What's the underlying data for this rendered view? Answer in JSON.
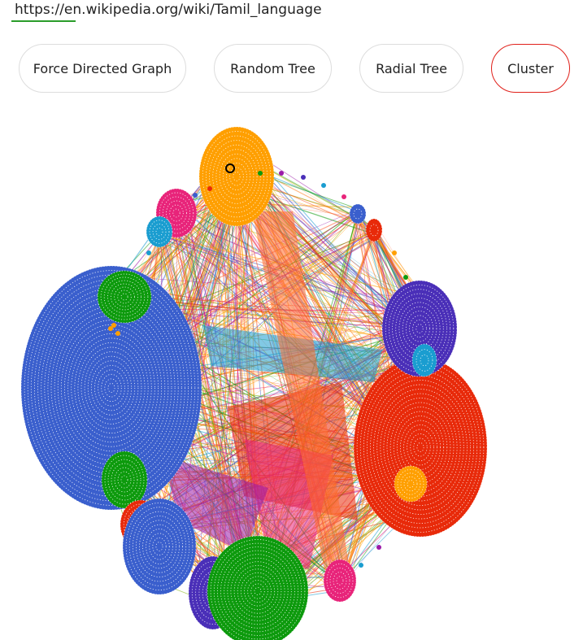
{
  "url": "https://en.wikipedia.org/wiki/Tamil_language",
  "layout_buttons": [
    {
      "label": "Force Directed Graph",
      "active": false
    },
    {
      "label": "Random Tree",
      "active": false
    },
    {
      "label": "Radial Tree",
      "active": false
    },
    {
      "label": "Cluster",
      "active": true
    }
  ],
  "colors": {
    "active_border": "#e0201a",
    "button_border": "#dddddd",
    "url_underline": "#2a9d2a",
    "cluster_palette": [
      "#3a5fcd",
      "#ff9f00",
      "#e8247a",
      "#1a9dd0",
      "#0d9a0d",
      "#e82a0a",
      "#4a2fb8",
      "#9b1aa8"
    ]
  }
}
